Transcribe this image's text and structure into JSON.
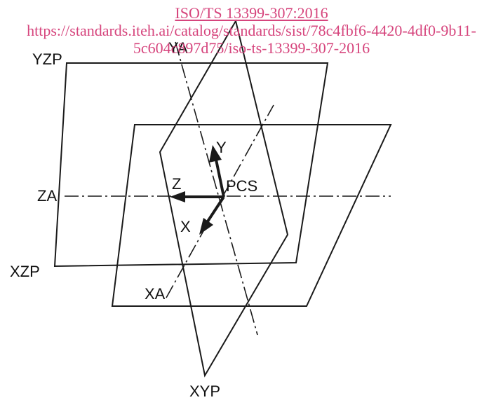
{
  "watermark": {
    "standard_link": "ISO/TS 13399-307:2016",
    "url_line_1": "https://standards.iteh.ai/catalog/standards/sist/78c4fbf6-4420-4df0-9b11-",
    "url_line_2": "5c604c897d75/iso-ts-13399-307-2016",
    "color": "#d6457d"
  },
  "diagram": {
    "labels": {
      "yzp": "YZP",
      "xzp": "XZP",
      "xyp": "XYP",
      "ya": "YA",
      "za": "ZA",
      "xa": "XA",
      "y": "Y",
      "z": "Z",
      "x": "X",
      "pcs": "PCS"
    }
  }
}
